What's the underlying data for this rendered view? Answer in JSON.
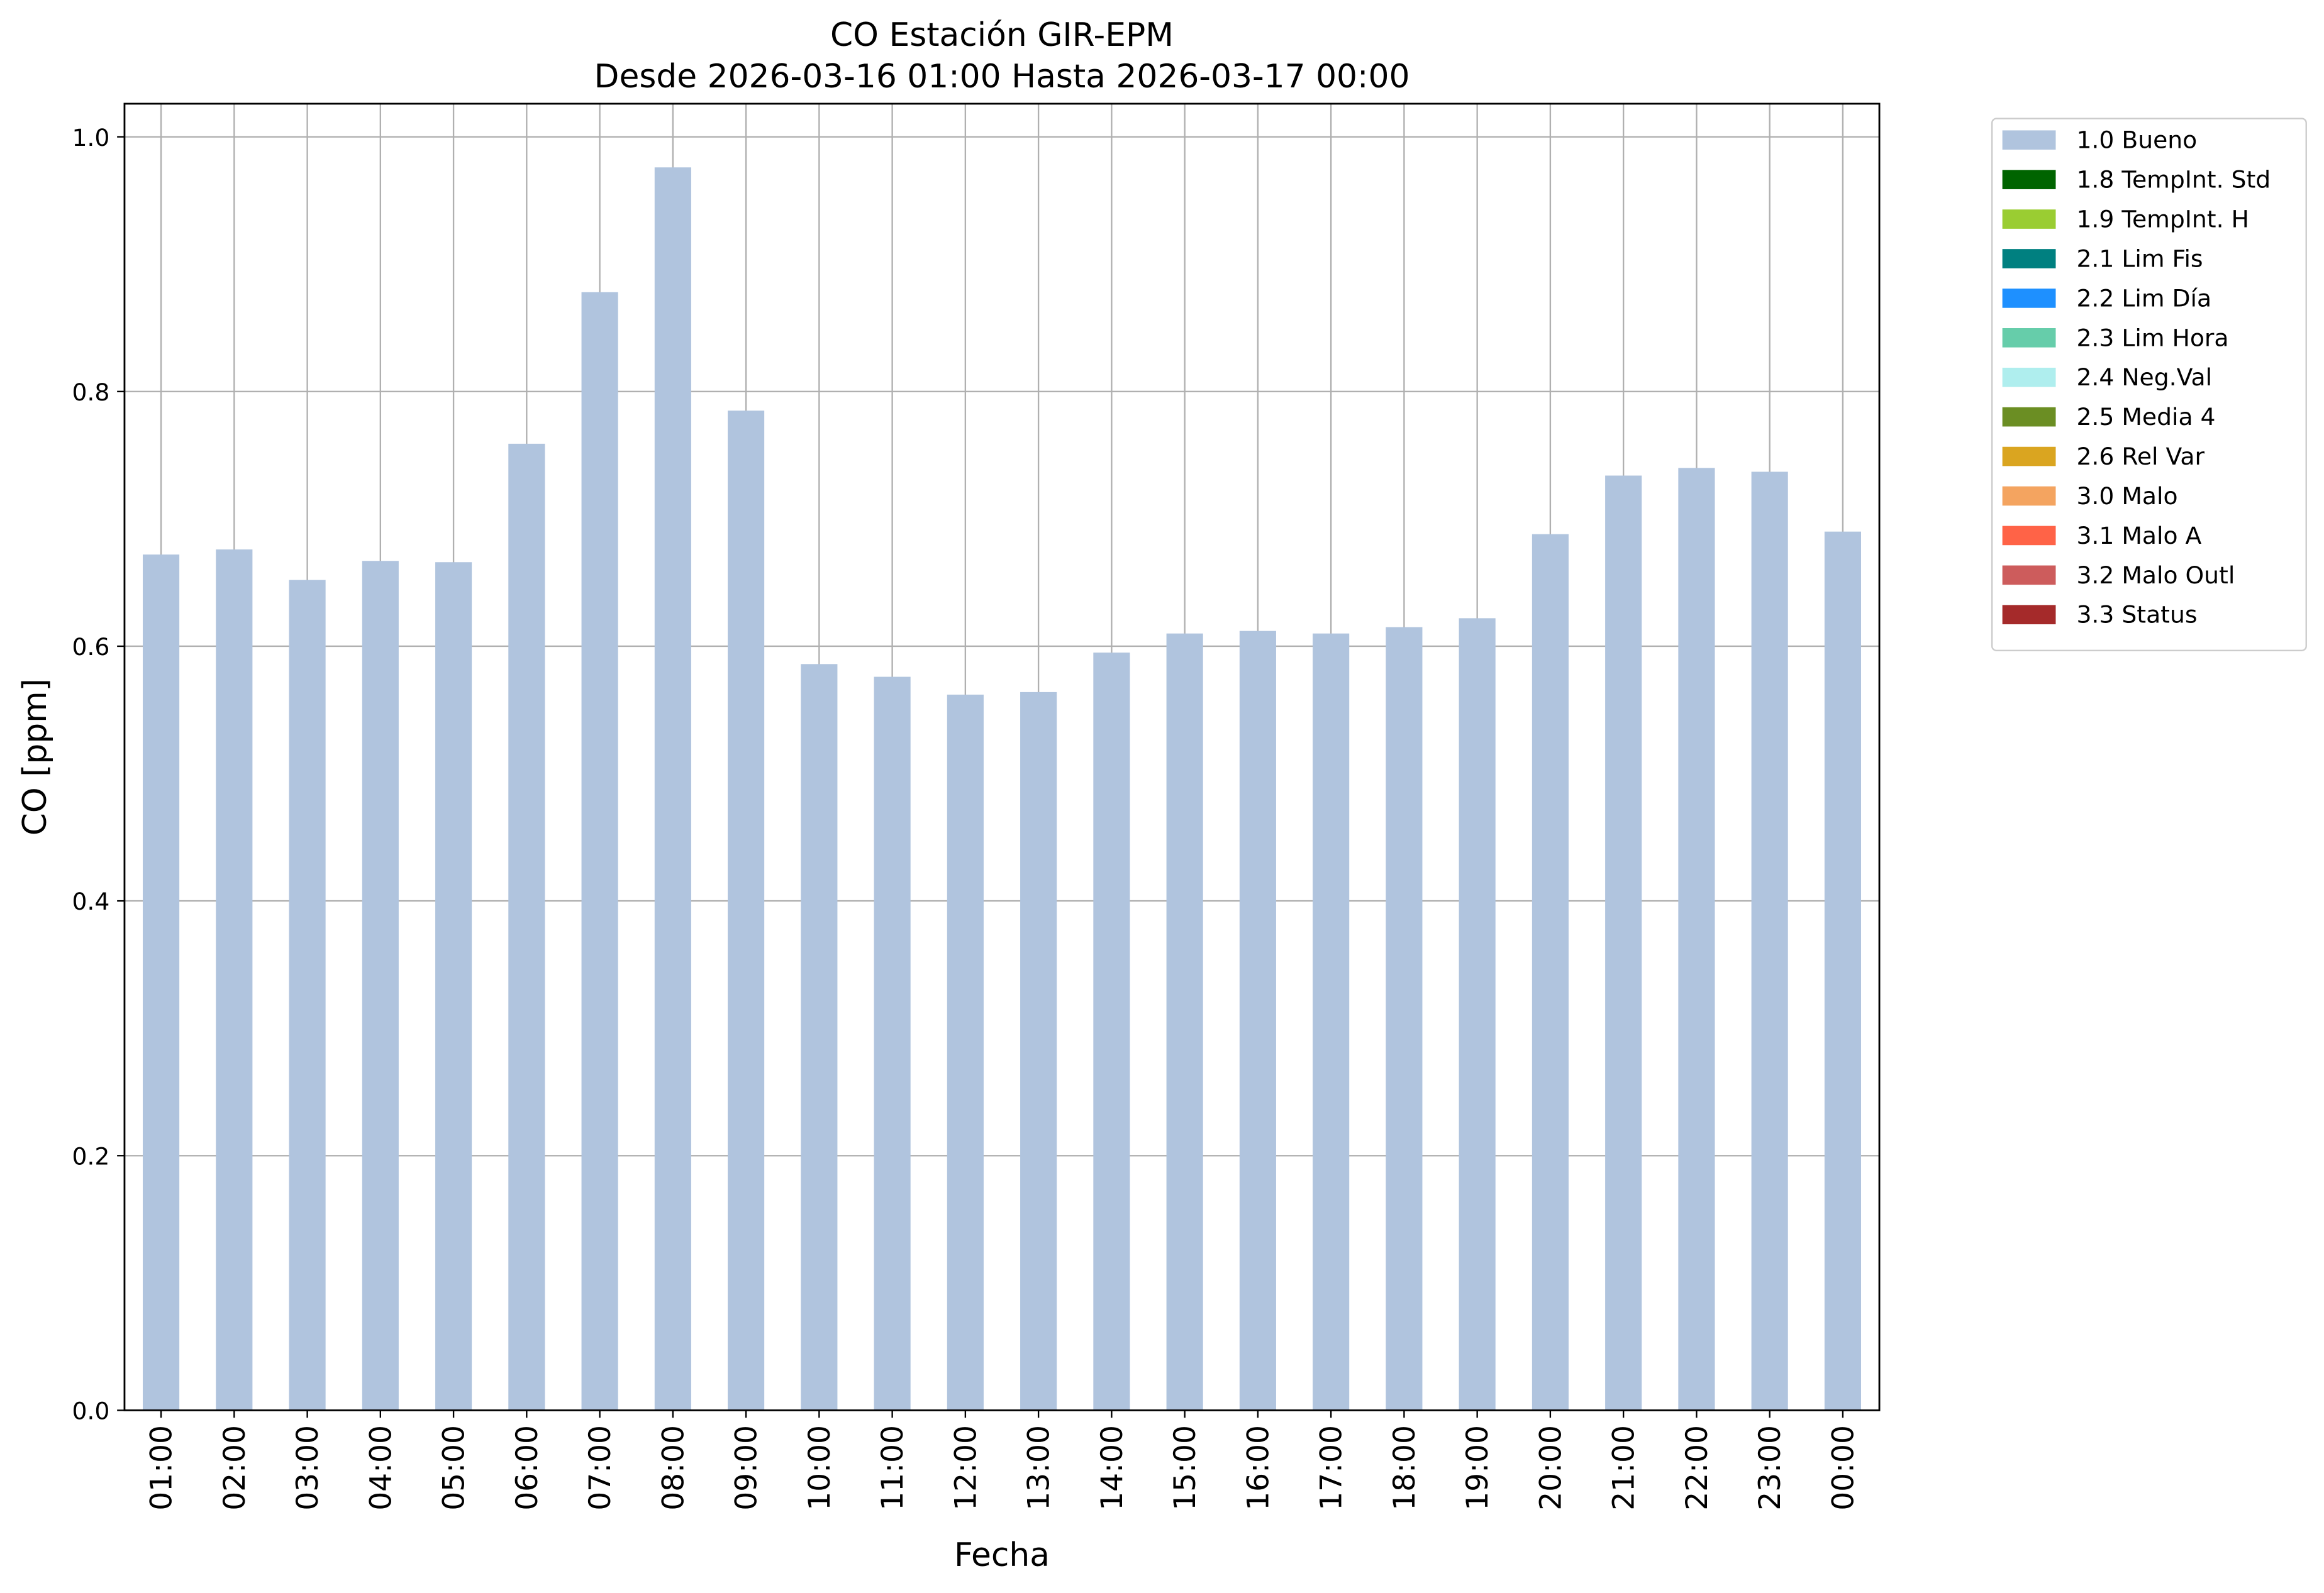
{
  "chart_data": {
    "type": "bar",
    "title": "CO Estación GIR-EPM",
    "subtitle": "Desde 2026-03-16 01:00 Hasta 2026-03-17 00:00",
    "x_label": "Fecha",
    "y_label": "CO [ppm]",
    "categories": [
      "01:00",
      "02:00",
      "03:00",
      "04:00",
      "05:00",
      "06:00",
      "07:00",
      "08:00",
      "09:00",
      "10:00",
      "11:00",
      "12:00",
      "13:00",
      "14:00",
      "15:00",
      "16:00",
      "17:00",
      "18:00",
      "19:00",
      "20:00",
      "21:00",
      "22:00",
      "23:00",
      "00:00"
    ],
    "series": [
      {
        "name": "1.0 Bueno",
        "color": "#b0c4de",
        "values": [
          0.672,
          0.676,
          0.652,
          0.667,
          0.666,
          0.759,
          0.878,
          0.976,
          0.785,
          0.586,
          0.576,
          0.562,
          0.564,
          0.595,
          0.61,
          0.612,
          0.61,
          0.615,
          0.622,
          0.688,
          0.734,
          0.74,
          0.737,
          0.69
        ]
      },
      {
        "name": "1.8 TempInt. Std",
        "color": "#006400"
      },
      {
        "name": "1.9 TempInt. H",
        "color": "#9acd32"
      },
      {
        "name": "2.1 Lim Fis",
        "color": "#008080"
      },
      {
        "name": "2.2 Lim Día",
        "color": "#1e90ff"
      },
      {
        "name": "2.3 Lim Hora",
        "color": "#66cdaa"
      },
      {
        "name": "2.4 Neg.Val",
        "color": "#afeeee"
      },
      {
        "name": "2.5 Media 4",
        "color": "#6b8e23"
      },
      {
        "name": "2.6 Rel Var",
        "color": "#daa520"
      },
      {
        "name": "3.0 Malo",
        "color": "#f4a460"
      },
      {
        "name": "3.1 Malo A",
        "color": "#ff6347"
      },
      {
        "name": "3.2 Malo Outl",
        "color": "#cd5c5c"
      },
      {
        "name": "3.3 Status",
        "color": "#a52a2a"
      }
    ],
    "ylim": [
      0,
      1.026
    ],
    "yticks": [
      {
        "value": 0,
        "label": "0.0"
      },
      0.2,
      0.4,
      0.6,
      0.8,
      {
        "value": 1,
        "label": "1.0"
      }
    ],
    "grid": true,
    "legend": "outside-upper-right"
  }
}
